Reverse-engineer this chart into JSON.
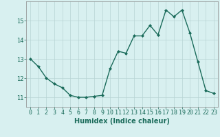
{
  "x": [
    0,
    1,
    2,
    3,
    4,
    5,
    6,
    7,
    8,
    9,
    10,
    11,
    12,
    13,
    14,
    15,
    16,
    17,
    18,
    19,
    20,
    21,
    22,
    23
  ],
  "y": [
    13.0,
    12.6,
    12.0,
    11.7,
    11.5,
    11.1,
    11.0,
    11.0,
    11.05,
    11.1,
    12.5,
    13.4,
    13.3,
    14.2,
    14.2,
    14.75,
    14.25,
    15.55,
    15.2,
    15.55,
    14.35,
    12.85,
    11.35,
    11.2
  ],
  "line_color": "#1a6b5a",
  "marker": "D",
  "marker_size": 2,
  "linewidth": 1.0,
  "background_color": "#d8f0f0",
  "grid_color": "#b8d4d4",
  "xlabel": "Humidex (Indice chaleur)",
  "xlabel_fontsize": 7,
  "tick_fontsize": 6,
  "ylim": [
    10.5,
    16.0
  ],
  "xlim": [
    -0.5,
    23.5
  ],
  "yticks": [
    11,
    12,
    13,
    14,
    15
  ],
  "xticks": [
    0,
    1,
    2,
    3,
    4,
    5,
    6,
    7,
    8,
    9,
    10,
    11,
    12,
    13,
    14,
    15,
    16,
    17,
    18,
    19,
    20,
    21,
    22,
    23
  ]
}
